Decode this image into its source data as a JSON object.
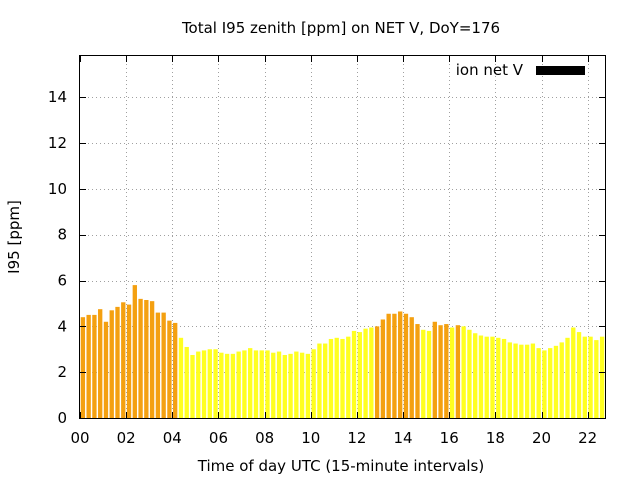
{
  "chart_data": {
    "type": "bar",
    "title": "Total I95 zenith [ppm] on NET V, DoY=176",
    "xlabel": "Time of day UTC (15-minute intervals)",
    "ylabel": "I95 [ppm]",
    "xlim": [
      0,
      22.75
    ],
    "ylim": [
      0,
      15.8
    ],
    "x_ticks": [
      "00",
      "02",
      "04",
      "06",
      "08",
      "10",
      "12",
      "14",
      "16",
      "18",
      "20",
      "22"
    ],
    "y_ticks": [
      "0",
      "2",
      "4",
      "6",
      "8",
      "10",
      "12",
      "14"
    ],
    "grid": true,
    "legend_position": "top-right",
    "interval_hours": 0.25,
    "colors": {
      "high": "#f4a010",
      "low": "#ffff20",
      "legend": "#000000"
    },
    "series": [
      {
        "name": "ion net V",
        "values": [
          4.4,
          4.5,
          4.5,
          4.75,
          4.2,
          4.7,
          4.85,
          5.05,
          4.95,
          5.8,
          5.2,
          5.15,
          5.1,
          4.6,
          4.6,
          4.25,
          4.15,
          3.5,
          3.1,
          2.75,
          2.9,
          2.95,
          3.0,
          3.0,
          2.85,
          2.8,
          2.8,
          2.9,
          2.95,
          3.05,
          2.95,
          2.95,
          2.95,
          2.85,
          2.9,
          2.75,
          2.8,
          2.9,
          2.85,
          2.8,
          3.0,
          3.25,
          3.25,
          3.45,
          3.5,
          3.45,
          3.55,
          3.8,
          3.75,
          3.9,
          3.95,
          4.0,
          4.3,
          4.55,
          4.55,
          4.65,
          4.55,
          4.4,
          4.1,
          3.85,
          3.8,
          4.2,
          4.05,
          4.1,
          3.95,
          4.05,
          4.0,
          3.85,
          3.7,
          3.6,
          3.55,
          3.55,
          3.5,
          3.45,
          3.3,
          3.25,
          3.2,
          3.2,
          3.25,
          3.05,
          2.95,
          3.05,
          3.15,
          3.3,
          3.5,
          3.95,
          3.75,
          3.55,
          3.55,
          3.4,
          3.55,
          3.15,
          3.25
        ],
        "levels": [
          "high",
          "high",
          "high",
          "high",
          "high",
          "high",
          "high",
          "high",
          "high",
          "high",
          "high",
          "high",
          "high",
          "high",
          "high",
          "high",
          "high",
          "low",
          "low",
          "low",
          "low",
          "low",
          "low",
          "low",
          "low",
          "low",
          "low",
          "low",
          "low",
          "low",
          "low",
          "low",
          "low",
          "low",
          "low",
          "low",
          "low",
          "low",
          "low",
          "low",
          "low",
          "low",
          "low",
          "low",
          "low",
          "low",
          "low",
          "low",
          "low",
          "low",
          "low",
          "high",
          "high",
          "high",
          "high",
          "high",
          "high",
          "high",
          "high",
          "low",
          "low",
          "high",
          "high",
          "high",
          "low",
          "high",
          "low",
          "low",
          "low",
          "low",
          "low",
          "low",
          "low",
          "low",
          "low",
          "low",
          "low",
          "low",
          "low",
          "low",
          "low",
          "low",
          "low",
          "low",
          "low",
          "low",
          "low",
          "low",
          "low",
          "low",
          "low",
          "low",
          "low"
        ]
      }
    ]
  }
}
